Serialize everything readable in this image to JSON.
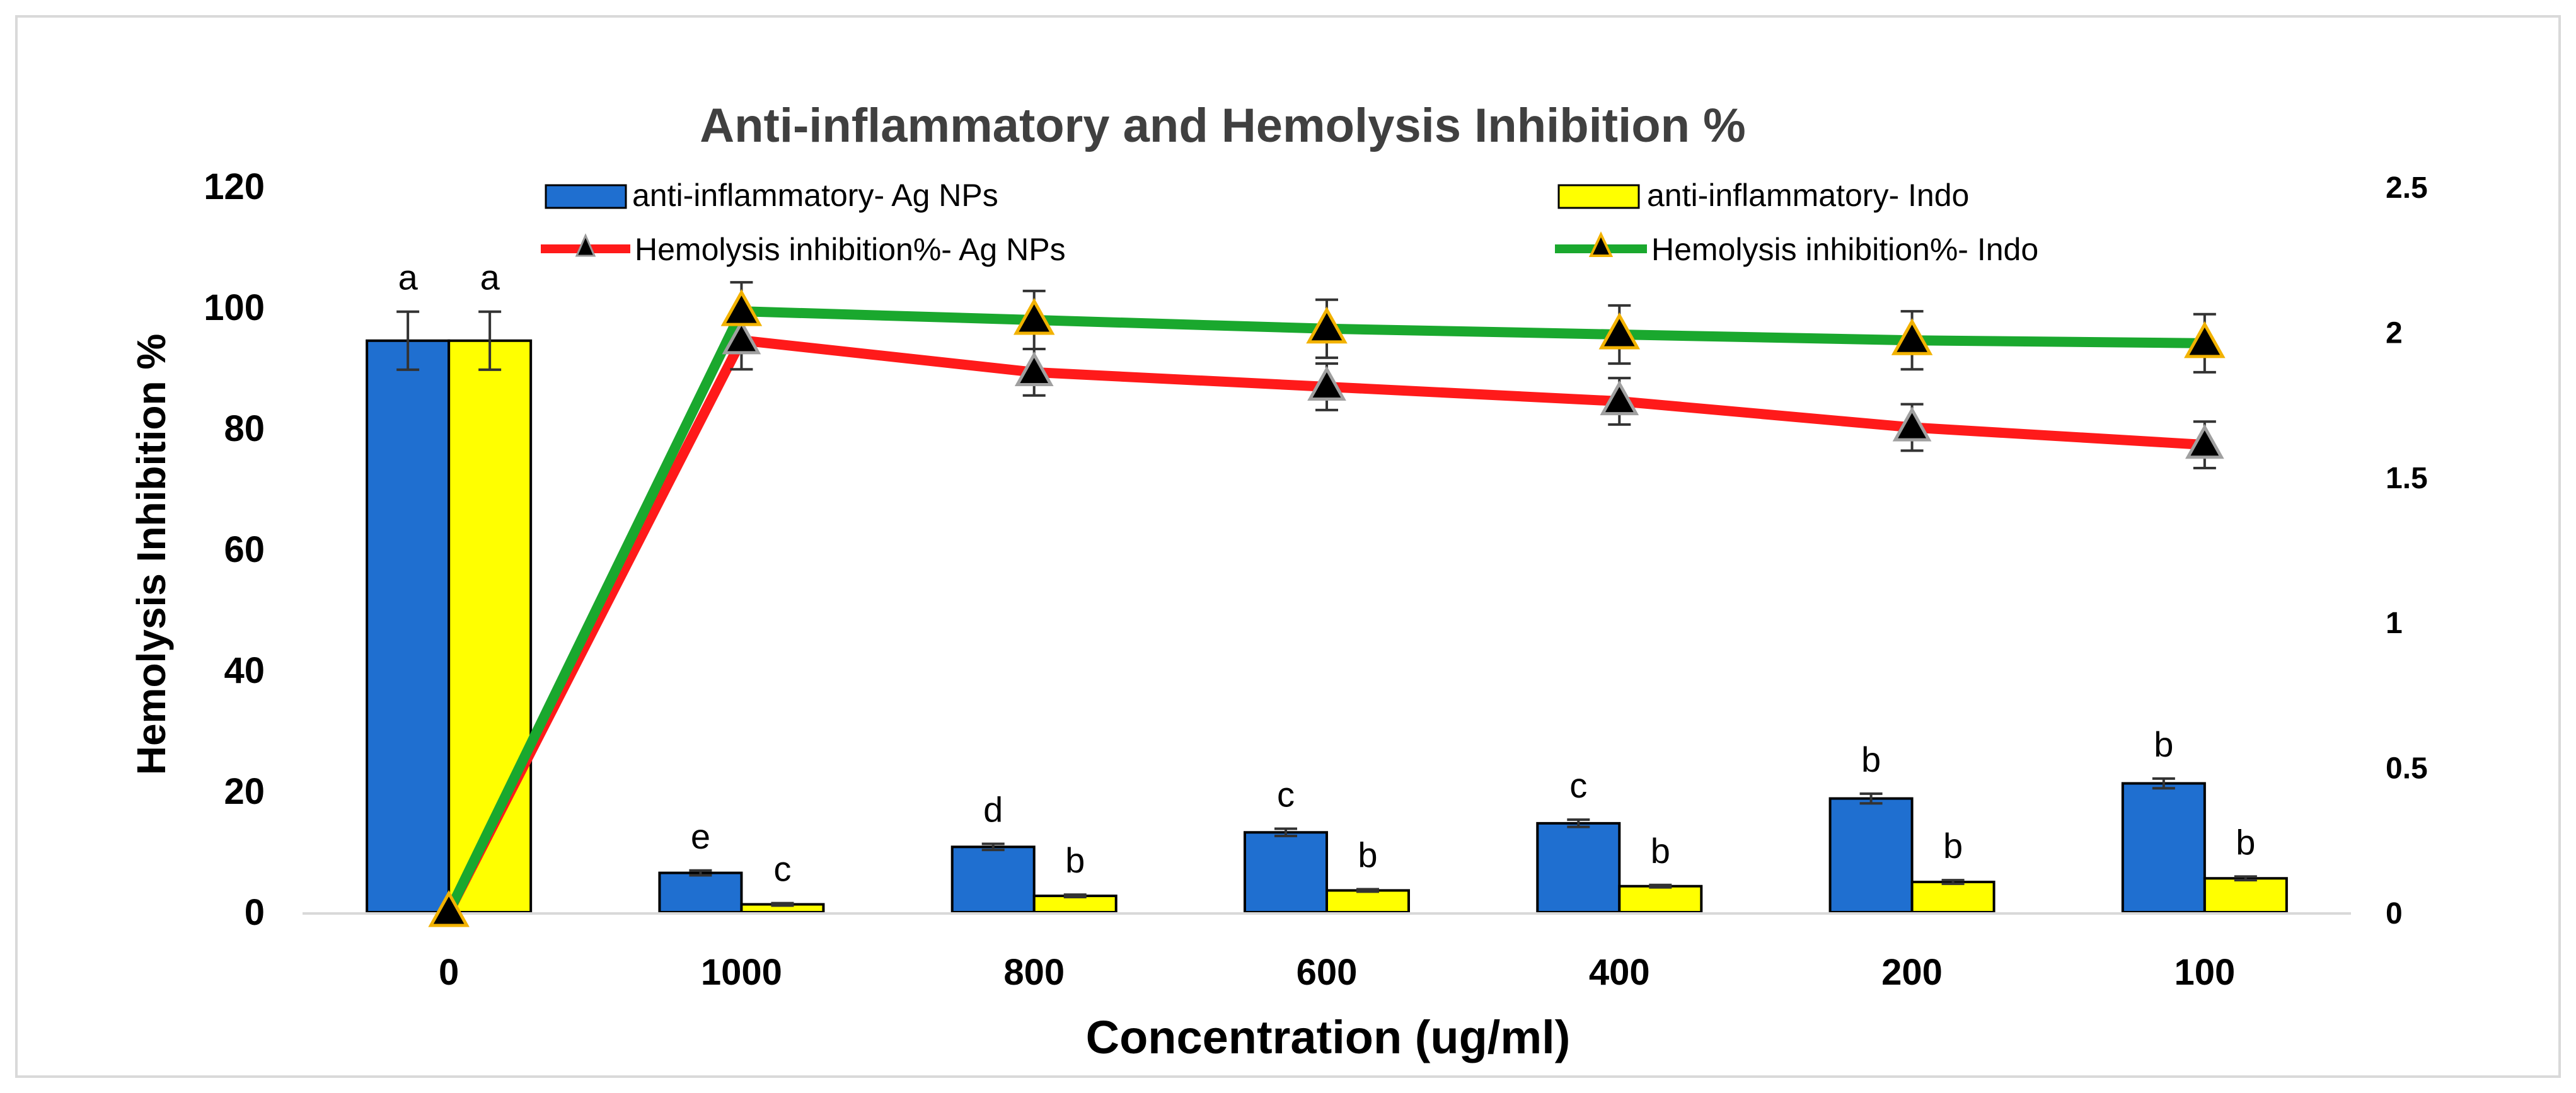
{
  "chart_data": {
    "type": "bar",
    "title": "Anti-inflammatory and Hemolysis Inhibition %",
    "xlabel": "Concentration (ug/ml)",
    "ylabel": "Hemolysis Inhibition %",
    "categories": [
      "0",
      "1000",
      "800",
      "600",
      "400",
      "200",
      "100"
    ],
    "ylim": [
      0,
      120
    ],
    "y_ticks": [
      "0",
      "20",
      "40",
      "60",
      "80",
      "100",
      "120"
    ],
    "y2lim": [
      0,
      2.5
    ],
    "y2_ticks": [
      "0",
      "0.5",
      "1",
      "1.5",
      "2",
      "2.5"
    ],
    "grid": false,
    "legend_position": "top",
    "series": [
      {
        "name": "anti-inflammatory- Ag NPs",
        "kind": "bar",
        "axis": "left",
        "color": "#1f6fd0",
        "values": [
          94.5,
          6.5,
          10.8,
          13.2,
          14.7,
          18.8,
          21.3
        ],
        "errors": [
          4.8,
          0.4,
          0.5,
          0.6,
          0.6,
          0.8,
          0.8
        ],
        "labels": [
          "a",
          "e",
          "d",
          "c",
          "c",
          "b",
          "b"
        ]
      },
      {
        "name": "anti-inflammatory- Indo",
        "kind": "bar",
        "axis": "left",
        "color": "#ffff00",
        "values": [
          94.5,
          1.3,
          2.7,
          3.6,
          4.3,
          5.0,
          5.6
        ],
        "errors": [
          4.8,
          0.2,
          0.2,
          0.2,
          0.2,
          0.3,
          0.3
        ],
        "labels": [
          "a",
          "c",
          "b",
          "b",
          "b",
          "b",
          "b"
        ]
      },
      {
        "name": "Hemolysis inhibition%- Ag NPs",
        "kind": "line",
        "axis": "right",
        "color": "#ff1a1a",
        "values": [
          0,
          1.97,
          1.86,
          1.81,
          1.76,
          1.67,
          1.61
        ],
        "errors": [
          0,
          0.1,
          0.08,
          0.08,
          0.08,
          0.08,
          0.08
        ]
      },
      {
        "name": "Hemolysis inhibition%- Indo",
        "kind": "line",
        "axis": "right",
        "color": "#1aa82e",
        "values": [
          0,
          2.07,
          2.04,
          2.01,
          1.99,
          1.97,
          1.96
        ],
        "errors": [
          0,
          0.1,
          0.1,
          0.1,
          0.1,
          0.1,
          0.1
        ]
      }
    ]
  }
}
